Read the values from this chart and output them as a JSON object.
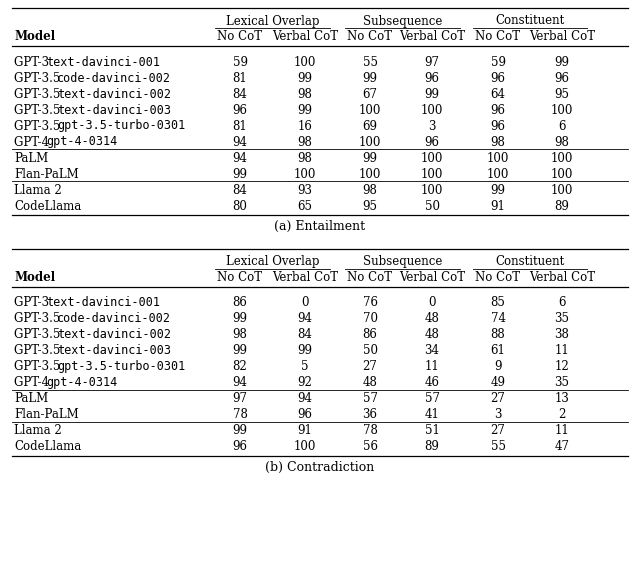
{
  "table_a_title": "(a) Entailment",
  "table_b_title": "(b) Contradiction",
  "col_groups": [
    "Lexical Overlap",
    "Subsequence",
    "Constituent"
  ],
  "col_subheads": [
    "No CoT",
    "Verbal CoT"
  ],
  "table_a": {
    "groups": [
      {
        "rows": [
          {
            "model": "GPT-3 text-davinci-001",
            "mono_suffix": "text-davinci-001",
            "serif_prefix": "GPT-3 ",
            "vals": [
              59,
              100,
              55,
              97,
              59,
              99
            ]
          },
          {
            "model": "GPT-3.5 code-davinci-002",
            "mono_suffix": "code-davinci-002",
            "serif_prefix": "GPT-3.5 ",
            "vals": [
              81,
              99,
              99,
              96,
              96,
              96
            ]
          },
          {
            "model": "GPT-3.5 text-davinci-002",
            "mono_suffix": "text-davinci-002",
            "serif_prefix": "GPT-3.5 ",
            "vals": [
              84,
              98,
              67,
              99,
              64,
              95
            ]
          },
          {
            "model": "GPT-3.5 text-davinci-003",
            "mono_suffix": "text-davinci-003",
            "serif_prefix": "GPT-3.5 ",
            "vals": [
              96,
              99,
              100,
              100,
              96,
              100
            ]
          },
          {
            "model": "GPT-3.5 gpt-3.5-turbo-0301",
            "mono_suffix": "gpt-3.5-turbo-0301",
            "serif_prefix": "GPT-3.5 ",
            "vals": [
              81,
              16,
              69,
              3,
              96,
              6
            ]
          },
          {
            "model": "GPT-4 gpt-4-0314",
            "mono_suffix": "gpt-4-0314",
            "serif_prefix": "GPT-4 ",
            "vals": [
              94,
              98,
              100,
              96,
              98,
              98
            ]
          }
        ]
      },
      {
        "rows": [
          {
            "model": "PaLM",
            "mono_suffix": null,
            "serif_prefix": "PaLM",
            "vals": [
              94,
              98,
              99,
              100,
              100,
              100
            ]
          },
          {
            "model": "Flan-PaLM",
            "mono_suffix": null,
            "serif_prefix": "Flan-PaLM",
            "vals": [
              99,
              100,
              100,
              100,
              100,
              100
            ]
          }
        ]
      },
      {
        "rows": [
          {
            "model": "Llama 2",
            "mono_suffix": null,
            "serif_prefix": "Llama 2",
            "vals": [
              84,
              93,
              98,
              100,
              99,
              100
            ]
          },
          {
            "model": "CodeLlama",
            "mono_suffix": null,
            "serif_prefix": "CodeLlama",
            "vals": [
              80,
              65,
              95,
              50,
              91,
              89
            ]
          }
        ]
      }
    ]
  },
  "table_b": {
    "groups": [
      {
        "rows": [
          {
            "model": "GPT-3 text-davinci-001",
            "mono_suffix": "text-davinci-001",
            "serif_prefix": "GPT-3 ",
            "vals": [
              86,
              0,
              76,
              0,
              85,
              6
            ]
          },
          {
            "model": "GPT-3.5 code-davinci-002",
            "mono_suffix": "code-davinci-002",
            "serif_prefix": "GPT-3.5 ",
            "vals": [
              99,
              94,
              70,
              48,
              74,
              35
            ]
          },
          {
            "model": "GPT-3.5 text-davinci-002",
            "mono_suffix": "text-davinci-002",
            "serif_prefix": "GPT-3.5 ",
            "vals": [
              98,
              84,
              86,
              48,
              88,
              38
            ]
          },
          {
            "model": "GPT-3.5 text-davinci-003",
            "mono_suffix": "text-davinci-003",
            "serif_prefix": "GPT-3.5 ",
            "vals": [
              99,
              99,
              50,
              34,
              61,
              11
            ]
          },
          {
            "model": "GPT-3.5 gpt-3.5-turbo-0301",
            "mono_suffix": "gpt-3.5-turbo-0301",
            "serif_prefix": "GPT-3.5 ",
            "vals": [
              82,
              5,
              27,
              11,
              9,
              12
            ]
          },
          {
            "model": "GPT-4 gpt-4-0314",
            "mono_suffix": "gpt-4-0314",
            "serif_prefix": "GPT-4 ",
            "vals": [
              94,
              92,
              48,
              46,
              49,
              35
            ]
          }
        ]
      },
      {
        "rows": [
          {
            "model": "PaLM",
            "mono_suffix": null,
            "serif_prefix": "PaLM",
            "vals": [
              97,
              94,
              57,
              57,
              27,
              13
            ]
          },
          {
            "model": "Flan-PaLM",
            "mono_suffix": null,
            "serif_prefix": "Flan-PaLM",
            "vals": [
              78,
              96,
              36,
              41,
              3,
              2
            ]
          }
        ]
      },
      {
        "rows": [
          {
            "model": "Llama 2",
            "mono_suffix": null,
            "serif_prefix": "Llama 2",
            "vals": [
              99,
              91,
              78,
              51,
              27,
              11
            ]
          },
          {
            "model": "CodeLlama",
            "mono_suffix": null,
            "serif_prefix": "CodeLlama",
            "vals": [
              96,
              100,
              56,
              89,
              55,
              47
            ]
          }
        ]
      }
    ]
  }
}
